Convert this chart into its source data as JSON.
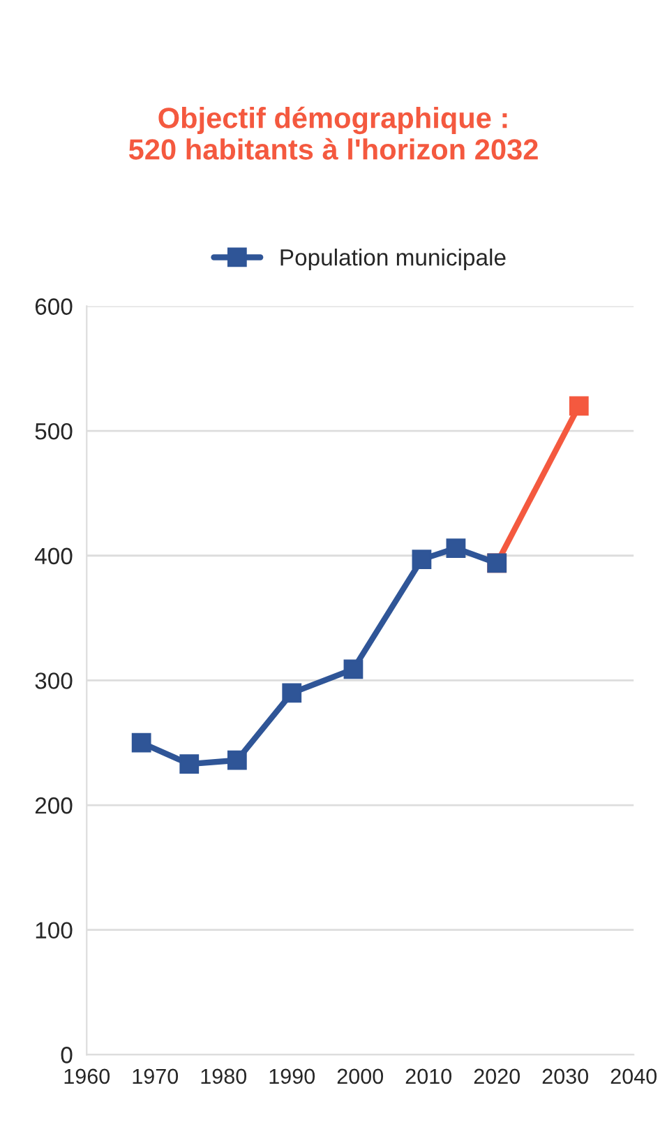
{
  "chart_data": {
    "type": "line",
    "x": [
      1968,
      1975,
      1982,
      1990,
      1999,
      2009,
      2014,
      2020
    ],
    "series": [
      {
        "name": "Population municipale",
        "color": "#2f5597",
        "values": [
          250,
          233,
          236,
          290,
          309,
          397,
          406,
          394
        ]
      },
      {
        "color": "#f4593f",
        "x": [
          2020,
          2032
        ],
        "values": [
          394,
          520
        ]
      }
    ],
    "xlim": [
      1960,
      2040
    ],
    "xticks": [
      1960,
      1970,
      1980,
      1990,
      2000,
      2010,
      2020,
      2030,
      2040
    ],
    "ylim": [
      0,
      600
    ],
    "yticks": [
      0,
      100,
      200,
      300,
      400,
      500,
      600
    ],
    "annotations": [
      "Objectif démographique :\n520 habitants à l'horizon 2032"
    ],
    "grid": "y",
    "legend": "top",
    "marker": "square",
    "line_style": "solid"
  }
}
